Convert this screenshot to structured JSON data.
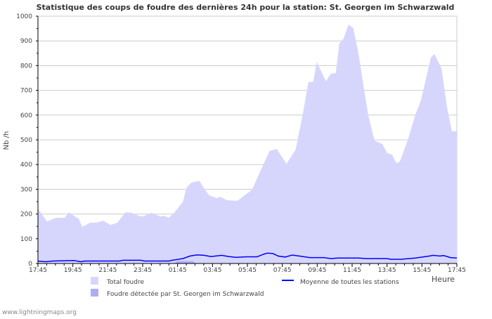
{
  "chart_data": {
    "type": "area",
    "title": "Statistique des coups de foudre des dernières 24h pour la station: St. Georgen im Schwarzwald",
    "ylabel": "Nb /h",
    "xlabel": "Heure",
    "ylim": [
      0,
      1000
    ],
    "xlim_hours": [
      0,
      24
    ],
    "yticks": [
      "0",
      "100",
      "200",
      "300",
      "400",
      "500",
      "600",
      "700",
      "800",
      "900",
      "1000"
    ],
    "xticks": [
      "17:45",
      "19:45",
      "21:45",
      "23:45",
      "01:45",
      "03:45",
      "05:45",
      "07:45",
      "09:45",
      "11:45",
      "13:45",
      "15:45",
      "17:45"
    ],
    "grid": true,
    "legend": {
      "total": "Total foudre",
      "station": "Foudre détectée par St. Georgen im Schwarzwald",
      "average": "Moyenne de toutes les stations"
    },
    "colors": {
      "total": "#d6d6fd",
      "station": "#adadf5",
      "average": "#0000ff",
      "grid": "#cccccc"
    },
    "series": [
      {
        "name": "Total foudre",
        "kind": "area",
        "points": [
          [
            0,
            222
          ],
          [
            0.52,
            170
          ],
          [
            1.05,
            185
          ],
          [
            1.53,
            185
          ],
          [
            1.77,
            207
          ],
          [
            2.34,
            180
          ],
          [
            2.54,
            148
          ],
          [
            2.99,
            165
          ],
          [
            3.35,
            165
          ],
          [
            3.75,
            173
          ],
          [
            4.15,
            156
          ],
          [
            4.56,
            165
          ],
          [
            5.0,
            207
          ],
          [
            5.37,
            205
          ],
          [
            5.77,
            193
          ],
          [
            6.01,
            190
          ],
          [
            6.49,
            205
          ],
          [
            7.02,
            190
          ],
          [
            7.22,
            193
          ],
          [
            7.5,
            185
          ],
          [
            7.83,
            207
          ],
          [
            8.31,
            250
          ],
          [
            8.51,
            307
          ],
          [
            8.79,
            327
          ],
          [
            9.24,
            335
          ],
          [
            9.52,
            304
          ],
          [
            9.8,
            276
          ],
          [
            10.25,
            264
          ],
          [
            10.45,
            270
          ],
          [
            10.81,
            256
          ],
          [
            11.42,
            253
          ],
          [
            11.82,
            275
          ],
          [
            12.26,
            298
          ],
          [
            12.75,
            375
          ],
          [
            13.27,
            455
          ],
          [
            13.68,
            463
          ],
          [
            14.24,
            403
          ],
          [
            14.76,
            460
          ],
          [
            15.17,
            602
          ],
          [
            15.49,
            733
          ],
          [
            15.77,
            735
          ],
          [
            15.97,
            815
          ],
          [
            16.5,
            737
          ],
          [
            16.78,
            767
          ],
          [
            17.06,
            770
          ],
          [
            17.26,
            889
          ],
          [
            17.51,
            909
          ],
          [
            17.79,
            966
          ],
          [
            18.07,
            952
          ],
          [
            18.39,
            838
          ],
          [
            18.68,
            705
          ],
          [
            18.92,
            602
          ],
          [
            19.28,
            497
          ],
          [
            19.73,
            483
          ],
          [
            20.01,
            446
          ],
          [
            20.29,
            440
          ],
          [
            20.53,
            406
          ],
          [
            20.73,
            412
          ],
          [
            21.22,
            506
          ],
          [
            21.62,
            602
          ],
          [
            21.94,
            659
          ],
          [
            22.51,
            832
          ],
          [
            22.71,
            847
          ],
          [
            23.12,
            790
          ],
          [
            23.44,
            630
          ],
          [
            23.72,
            535
          ],
          [
            24,
            535
          ]
        ]
      },
      {
        "name": "Foudre détectée par St. Georgen im Schwarzwald",
        "kind": "area",
        "points": [
          [
            7.8,
            0
          ],
          [
            7.95,
            10
          ],
          [
            8.9,
            10
          ],
          [
            9.0,
            0
          ],
          [
            23.85,
            0
          ],
          [
            24,
            3
          ]
        ]
      },
      {
        "name": "Moyenne de toutes les stations",
        "kind": "line",
        "points": [
          [
            0,
            10
          ],
          [
            0.44,
            7
          ],
          [
            0.85,
            10
          ],
          [
            2.06,
            12
          ],
          [
            2.46,
            7
          ],
          [
            2.66,
            10
          ],
          [
            4.68,
            10
          ],
          [
            4.88,
            13
          ],
          [
            5.89,
            13
          ],
          [
            6.09,
            10
          ],
          [
            7.5,
            10
          ],
          [
            7.7,
            13
          ],
          [
            8.31,
            20
          ],
          [
            8.71,
            30
          ],
          [
            9.12,
            35
          ],
          [
            9.52,
            33
          ],
          [
            9.92,
            28
          ],
          [
            10.53,
            33
          ],
          [
            10.93,
            28
          ],
          [
            11.33,
            25
          ],
          [
            11.94,
            27
          ],
          [
            12.55,
            27
          ],
          [
            12.95,
            38
          ],
          [
            13.15,
            42
          ],
          [
            13.47,
            40
          ],
          [
            13.76,
            30
          ],
          [
            14.16,
            26
          ],
          [
            14.56,
            34
          ],
          [
            14.97,
            30
          ],
          [
            15.57,
            24
          ],
          [
            16.38,
            24
          ],
          [
            16.78,
            20
          ],
          [
            17.18,
            22
          ],
          [
            18.39,
            22
          ],
          [
            18.8,
            20
          ],
          [
            20.01,
            20
          ],
          [
            20.21,
            17
          ],
          [
            20.81,
            17
          ],
          [
            21.62,
            22
          ],
          [
            22.43,
            30
          ],
          [
            22.63,
            33
          ],
          [
            23.03,
            30
          ],
          [
            23.24,
            32
          ],
          [
            23.64,
            24
          ],
          [
            24,
            22
          ]
        ]
      }
    ]
  },
  "footer": {
    "site": "www.lightningmaps.org"
  }
}
